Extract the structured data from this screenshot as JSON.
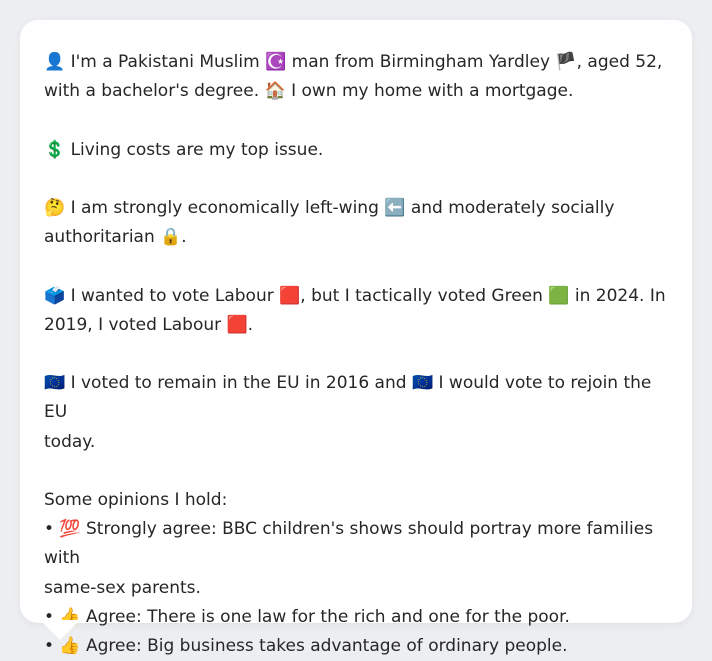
{
  "bio": {
    "line1_a": "👤 I'm a Pakistani Muslim ☪️ man from Birmingham Yardley 🏴, aged 52,",
    "line1_b": "with a bachelor's degree. 🏠 I own my home with a mortgage."
  },
  "issue": "💲 Living costs are my top issue.",
  "politics": {
    "line_a": "🤔 I am strongly economically left-wing ⬅️ and moderately socially",
    "line_b": "authoritarian 🔒."
  },
  "vote": {
    "line_a": "🗳️ I wanted to vote Labour 🟥, but I tactically voted Green 🟩 in 2024. In",
    "line_b": "2019, I voted Labour 🟥."
  },
  "eu": {
    "line_a": "🇪🇺 I voted to remain in the EU in 2016 and 🇪🇺 I would vote to rejoin the EU",
    "line_b": "today."
  },
  "opinions": {
    "heading": "Some opinions I hold:",
    "items": [
      {
        "line_a": "• 💯 Strongly agree: BBC children's shows should portray more families with",
        "line_b": "same-sex parents."
      },
      {
        "line_a": "• 👍 Agree: There is one law for the rich and one for the poor."
      },
      {
        "line_a": "• 👍 Agree: Big business takes advantage of ordinary people."
      }
    ]
  }
}
